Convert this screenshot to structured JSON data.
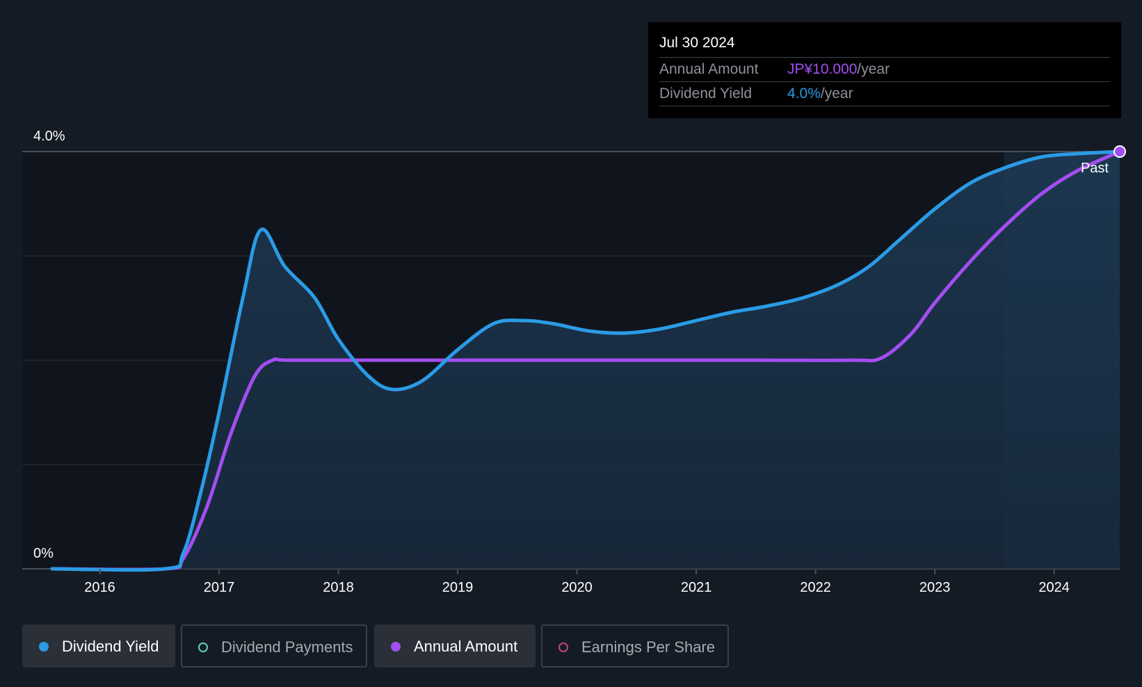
{
  "tooltip": {
    "date": "Jul 30 2024",
    "rows": [
      {
        "label": "Annual Amount",
        "value": "JP¥10.000",
        "unit": "/year",
        "color": "#a24ef0"
      },
      {
        "label": "Dividend Yield",
        "value": "4.0%",
        "unit": "/year",
        "color": "#2b9be6"
      }
    ]
  },
  "chart_data": {
    "type": "line",
    "y_axis_labels": [
      "4.0%",
      "0%"
    ],
    "ylim": [
      0,
      4.0
    ],
    "x_tick_labels": [
      "2016",
      "2017",
      "2018",
      "2019",
      "2020",
      "2021",
      "2022",
      "2023",
      "2024"
    ],
    "xlim": [
      2015.35,
      2024.55
    ],
    "past_label": "Past",
    "past_region_start": 2023.58,
    "grid": true,
    "series": [
      {
        "name": "Dividend Yield",
        "color": "#2b9be6",
        "points": [
          [
            2015.6,
            0.0
          ],
          [
            2016.55,
            0.0
          ],
          [
            2016.7,
            0.15
          ],
          [
            2016.85,
            0.75
          ],
          [
            2017.0,
            1.5
          ],
          [
            2017.2,
            2.6
          ],
          [
            2017.35,
            3.25
          ],
          [
            2017.55,
            2.9
          ],
          [
            2017.8,
            2.6
          ],
          [
            2018.0,
            2.2
          ],
          [
            2018.25,
            1.85
          ],
          [
            2018.45,
            1.72
          ],
          [
            2018.7,
            1.8
          ],
          [
            2019.0,
            2.1
          ],
          [
            2019.3,
            2.35
          ],
          [
            2019.55,
            2.38
          ],
          [
            2019.8,
            2.35
          ],
          [
            2020.1,
            2.28
          ],
          [
            2020.4,
            2.26
          ],
          [
            2020.7,
            2.3
          ],
          [
            2021.0,
            2.38
          ],
          [
            2021.3,
            2.46
          ],
          [
            2021.6,
            2.52
          ],
          [
            2021.9,
            2.6
          ],
          [
            2022.2,
            2.73
          ],
          [
            2022.45,
            2.9
          ],
          [
            2022.7,
            3.15
          ],
          [
            2023.0,
            3.45
          ],
          [
            2023.3,
            3.7
          ],
          [
            2023.6,
            3.85
          ],
          [
            2023.9,
            3.95
          ],
          [
            2024.2,
            3.98
          ],
          [
            2024.55,
            4.0
          ]
        ]
      },
      {
        "name": "Annual Amount",
        "color": "#a24ef0",
        "points": [
          [
            2015.6,
            0.0
          ],
          [
            2016.55,
            0.0
          ],
          [
            2016.7,
            0.1
          ],
          [
            2016.9,
            0.6
          ],
          [
            2017.1,
            1.3
          ],
          [
            2017.3,
            1.85
          ],
          [
            2017.45,
            2.0
          ],
          [
            2017.6,
            2.0
          ],
          [
            2018.5,
            2.0
          ],
          [
            2019.5,
            2.0
          ],
          [
            2020.5,
            2.0
          ],
          [
            2021.5,
            2.0
          ],
          [
            2022.3,
            2.0
          ],
          [
            2022.55,
            2.02
          ],
          [
            2022.8,
            2.25
          ],
          [
            2023.0,
            2.55
          ],
          [
            2023.3,
            2.95
          ],
          [
            2023.6,
            3.3
          ],
          [
            2023.9,
            3.6
          ],
          [
            2024.2,
            3.82
          ],
          [
            2024.55,
            4.0
          ]
        ]
      }
    ]
  },
  "legend": [
    {
      "label": "Dividend Yield",
      "color": "#2b9be6",
      "active": true
    },
    {
      "label": "Dividend Payments",
      "color": "#5fd0c0",
      "active": false
    },
    {
      "label": "Annual Amount",
      "color": "#a24ef0",
      "active": true
    },
    {
      "label": "Earnings Per Share",
      "color": "#c1457a",
      "active": false
    }
  ]
}
